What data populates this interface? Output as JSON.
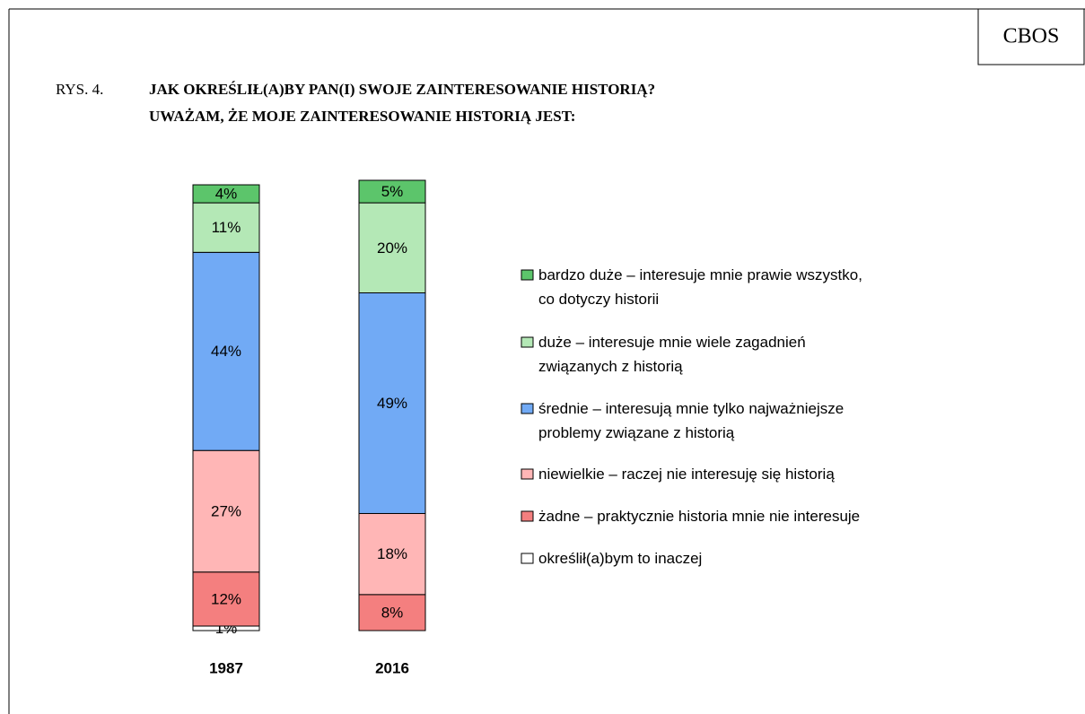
{
  "chart_data": {
    "type": "stacked_bar",
    "brand": "CBOS",
    "figure_label": "RYS. 4.",
    "title": "JAK OKREŚLIŁ(A)BY PAN(I) SWOJE ZAINTERESOWANIE HISTORIĄ?",
    "subtitle": "UWAŻAM, ŻE MOJE ZAINTERESOWANIE HISTORIĄ JEST:",
    "categories": [
      "1987",
      "2016"
    ],
    "series": [
      {
        "name": "określił(a)bym to inaczej",
        "color": "#ffffff",
        "values": [
          1,
          null
        ],
        "value_labels": [
          "1%",
          null
        ]
      },
      {
        "name": "żadne – praktycznie historia mnie nie interesuje",
        "color": "#f47f7f",
        "values": [
          12,
          8
        ],
        "value_labels": [
          "12%",
          "8%"
        ]
      },
      {
        "name": "niewielkie –  raczej nie interesuję się historią",
        "color": "#ffb6b6",
        "values": [
          27,
          18
        ],
        "value_labels": [
          "27%",
          "18%"
        ]
      },
      {
        "name": "średnie – interesują mnie tylko najważniejsze\nproblemy związane z historią",
        "color": "#71aaf5",
        "values": [
          44,
          49
        ],
        "value_labels": [
          "44%",
          "49%"
        ]
      },
      {
        "name": "duże – interesuje mnie wiele zagadnień\nzwiązanych z historią",
        "color": "#b4e8b6",
        "values": [
          11,
          20
        ],
        "value_labels": [
          "11%",
          "20%"
        ]
      },
      {
        "name": "bardzo duże – interesuje mnie prawie wszystko,\nco dotyczy historii",
        "color": "#5cc56b",
        "values": [
          4,
          5
        ],
        "value_labels": [
          "4%",
          "5%"
        ]
      }
    ]
  }
}
